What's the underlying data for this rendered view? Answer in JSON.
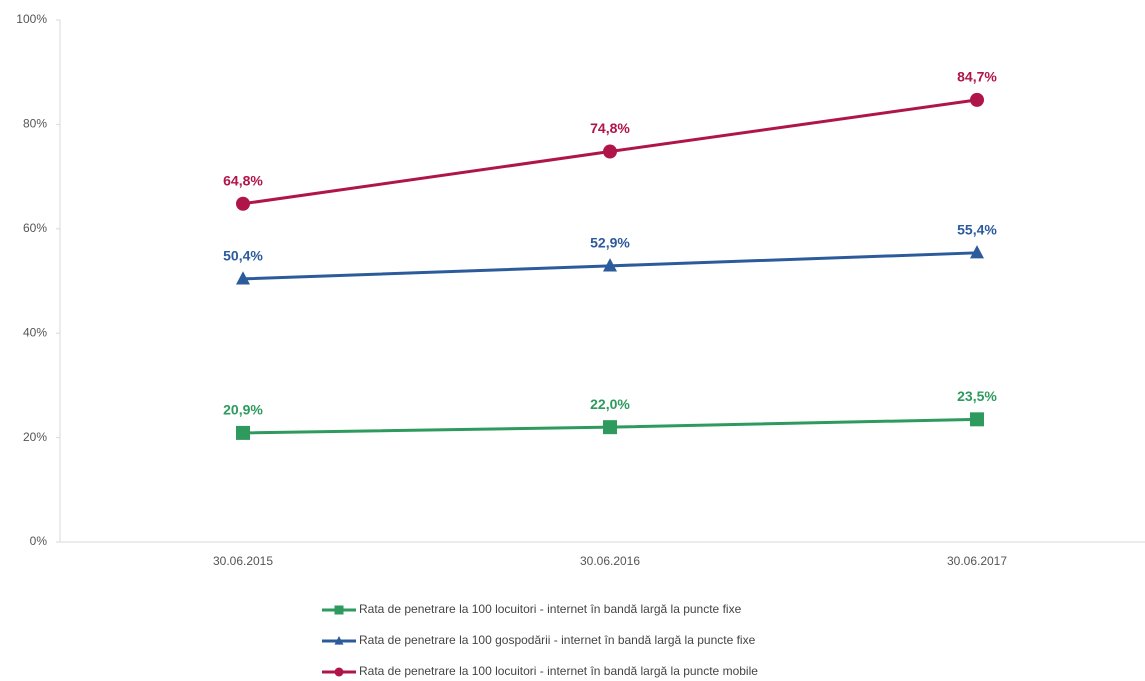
{
  "chart_data": {
    "type": "line",
    "categories": [
      "30.06.2015",
      "30.06.2016",
      "30.06.2017"
    ],
    "series": [
      {
        "name": "Rata de penetrare la 100 locuitori - internet în bandă largă la puncte fixe",
        "color": "#2e9a5e",
        "marker": "square",
        "values": [
          20.9,
          22.0,
          23.5
        ],
        "value_labels": [
          "20,9%",
          "22,0%",
          "23,5%"
        ]
      },
      {
        "name": "Rata de penetrare la 100 gospodării - internet în bandă largă la puncte fixe",
        "color": "#2c5b9c",
        "marker": "triangle",
        "values": [
          50.4,
          52.9,
          55.4
        ],
        "value_labels": [
          "50,4%",
          "52,9%",
          "55,4%"
        ]
      },
      {
        "name": "Rata de penetrare la 100 locuitori - internet în bandă largă la puncte mobile",
        "color": "#b0154a",
        "marker": "circle",
        "values": [
          64.8,
          74.8,
          84.7
        ],
        "value_labels": [
          "64,8%",
          "74,8%",
          "84,7%"
        ]
      }
    ],
    "ylim": [
      0,
      100
    ],
    "yticks": [
      {
        "value": 0,
        "label": "0%"
      },
      {
        "value": 20,
        "label": "20%"
      },
      {
        "value": 40,
        "label": "40%"
      },
      {
        "value": 60,
        "label": "60%"
      },
      {
        "value": 80,
        "label": "80%"
      },
      {
        "value": 100,
        "label": "100%"
      }
    ],
    "grid": false,
    "legend": "bottom"
  }
}
